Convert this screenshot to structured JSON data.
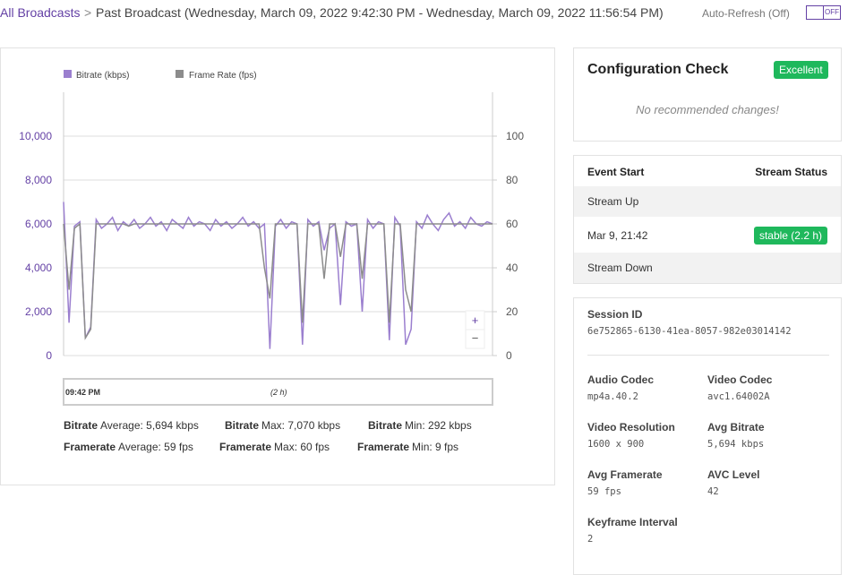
{
  "header": {
    "breadcrumb_link": "All Broadcasts",
    "separator": ">",
    "title": "Past Broadcast (Wednesday, March 09, 2022 9:42:30 PM - Wednesday, March 09, 2022 11:56:54 PM)",
    "auto_refresh": "Auto-Refresh (Off)",
    "toggle": "OFF"
  },
  "chart_data": {
    "type": "line",
    "series": [
      {
        "name": "Bitrate (kbps)",
        "color": "#9b7fcf",
        "values": [
          7000,
          1500,
          5900,
          6100,
          800,
          1300,
          6200,
          5800,
          6000,
          6300,
          5700,
          6100,
          5900,
          6200,
          5800,
          6000,
          6300,
          5900,
          6100,
          5700,
          6200,
          6000,
          5800,
          6300,
          5900,
          6100,
          6000,
          5700,
          6200,
          5900,
          6100,
          5800,
          6000,
          6300,
          5900,
          6100,
          5800,
          6000,
          300,
          5900,
          6200,
          5800,
          6100,
          6000,
          500,
          6200,
          5900,
          6100,
          4800,
          5800,
          6000,
          2300,
          6100,
          5900,
          6000,
          2000,
          6200,
          5800,
          6100,
          6000,
          700,
          6300,
          5900,
          500,
          1200,
          6100,
          5800,
          6400,
          6000,
          5700,
          6200,
          6500,
          5900,
          6100,
          5800,
          6300,
          6000,
          5900,
          6100,
          6000
        ]
      },
      {
        "name": "Frame Rate (fps)",
        "color": "#8c8c8c",
        "axis": "y2",
        "values": [
          60,
          30,
          58,
          60,
          8,
          12,
          60,
          60,
          60,
          60,
          60,
          60,
          59,
          60,
          60,
          60,
          60,
          60,
          60,
          60,
          60,
          60,
          60,
          60,
          60,
          60,
          60,
          60,
          60,
          60,
          60,
          60,
          60,
          60,
          60,
          60,
          60,
          40,
          26,
          60,
          60,
          60,
          60,
          60,
          15,
          60,
          60,
          60,
          35,
          60,
          60,
          45,
          60,
          60,
          60,
          35,
          60,
          60,
          60,
          60,
          15,
          60,
          60,
          30,
          20,
          60,
          60,
          60,
          60,
          60,
          60,
          60,
          60,
          60,
          60,
          60,
          60,
          60,
          60,
          60
        ]
      }
    ],
    "ylim": [
      0,
      12000
    ],
    "yticks": [
      0,
      {
        "value": 2000,
        "label": "2,000"
      },
      {
        "value": 4000,
        "label": "4,000"
      },
      {
        "value": 6000,
        "label": "6,000"
      },
      {
        "value": 8000,
        "label": "8,000"
      },
      {
        "value": 10000,
        "label": "10,000"
      }
    ],
    "y2lim": [
      0,
      120
    ],
    "y2ticks": [
      0,
      20,
      40,
      60,
      80,
      100
    ],
    "grid": true,
    "range_start": "09:42 PM",
    "range_span": "(2 h)",
    "zoom_in": "+",
    "zoom_out": "−",
    "stats": [
      {
        "name": "Bitrate",
        "text": "Average: 5,694 kbps"
      },
      {
        "name": "Bitrate",
        "text": "Max: 7,070 kbps"
      },
      {
        "name": "Bitrate",
        "text": "Min: 292 kbps"
      },
      {
        "name": "Framerate",
        "text": "Average: 59 fps"
      },
      {
        "name": "Framerate",
        "text": "Max: 60 fps"
      },
      {
        "name": "Framerate",
        "text": "Min: 9 fps"
      }
    ]
  },
  "config_check": {
    "title": "Configuration Check",
    "badge": "Excellent",
    "message": "No recommended changes!"
  },
  "events": {
    "headers": [
      "Event Start",
      "Stream Status"
    ],
    "rows": [
      [
        "Stream Up",
        null
      ],
      [
        "Mar 9, 21:42",
        "stable (2.2 h)"
      ],
      [
        "Stream Down",
        null
      ]
    ]
  },
  "session": {
    "id_label": "Session ID",
    "id_value": "6e752865-6130-41ea-8057-982e03014142",
    "fields": [
      {
        "label": "Audio Codec",
        "value": "mp4a.40.2"
      },
      {
        "label": "Video Codec",
        "value": "avc1.64002A"
      },
      {
        "label": "Video Resolution",
        "value": "1600 x 900"
      },
      {
        "label": "Avg Bitrate",
        "value": "5,694 kbps"
      },
      {
        "label": "Avg Framerate",
        "value": "59 fps"
      },
      {
        "label": "AVC Level",
        "value": "42"
      },
      {
        "label": "Keyframe Interval",
        "value": "2"
      }
    ]
  }
}
